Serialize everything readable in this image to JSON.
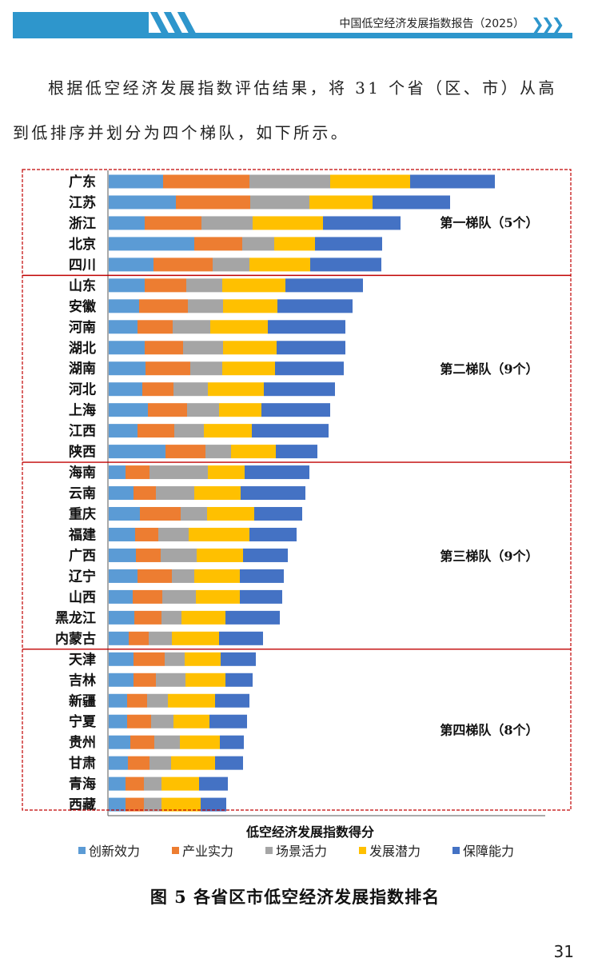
{
  "header": {
    "title": "中国低空经济发展指数报告（2025）"
  },
  "body": {
    "line1": "根据低空经济发展指数评估结果，将 31 个省（区、市）从高",
    "line2": "到低排序并划分为四个梯队，如下所示。"
  },
  "chart_data": {
    "type": "bar",
    "orientation": "horizontal",
    "stacked": true,
    "xlabel": "低空经济发展指数得分",
    "categories": [
      "广东",
      "江苏",
      "浙江",
      "北京",
      "四川",
      "山东",
      "安徽",
      "河南",
      "湖北",
      "湖南",
      "河北",
      "上海",
      "江西",
      "陕西",
      "海南",
      "云南",
      "重庆",
      "福建",
      "广西",
      "辽宁",
      "山西",
      "黑龙江",
      "内蒙古",
      "天津",
      "吉林",
      "新疆",
      "宁夏",
      "贵州",
      "甘肃",
      "青海",
      "西藏"
    ],
    "series": [
      {
        "name": "创新效力",
        "color": "#5B9BD5",
        "values": [
          13.6,
          16.8,
          9,
          21.4,
          11.2,
          9,
          7.6,
          7.2,
          9,
          9.2,
          8.4,
          9.8,
          7.2,
          14.2,
          4.2,
          6.2,
          7.8,
          6.6,
          6.8,
          7.2,
          6,
          6.4,
          5,
          6.2,
          6.2,
          4.6,
          4.6,
          5.4,
          4.8,
          4.2,
          4.2
        ]
      },
      {
        "name": "产业实力",
        "color": "#ED7D31",
        "values": [
          21.6,
          18.6,
          14.2,
          12,
          14.8,
          10.4,
          12.2,
          8.8,
          9.6,
          11.2,
          7.8,
          9.8,
          9.2,
          10,
          6,
          5.6,
          10.2,
          5.8,
          6.2,
          8.6,
          7.4,
          6.8,
          5,
          7.8,
          5.6,
          5,
          6,
          6,
          5.4,
          4.6,
          4.6
        ]
      },
      {
        "name": "场景活力",
        "color": "#A5A5A5",
        "values": [
          20.2,
          14.8,
          12.8,
          8,
          9.2,
          9,
          8.8,
          9.4,
          10,
          8,
          8.6,
          8,
          7.4,
          6.4,
          14.6,
          9.6,
          6.6,
          7.6,
          9,
          5.6,
          8.4,
          5,
          5.8,
          5,
          7.4,
          5.2,
          5.6,
          6.4,
          5.4,
          4.4,
          4.4
        ]
      },
      {
        "name": "发展潜力",
        "color": "#FFC000",
        "values": [
          20,
          15.8,
          17.6,
          10.2,
          15.2,
          15.8,
          13.6,
          14.4,
          13.4,
          13.2,
          14,
          10.6,
          12,
          11.2,
          9.2,
          11.6,
          11.8,
          15.2,
          11.6,
          11.4,
          11,
          11,
          11.8,
          9,
          10,
          11.8,
          9,
          10,
          11,
          9.4,
          9.8
        ]
      },
      {
        "name": "保障能力",
        "color": "#4472C4",
        "values": [
          21.2,
          19.4,
          19.4,
          16.8,
          17.8,
          19.4,
          18.8,
          19.4,
          17.2,
          17.2,
          17.8,
          17.2,
          19.2,
          10.4,
          16.2,
          16.2,
          12,
          11.8,
          11.2,
          11,
          10.6,
          13.6,
          11,
          8.8,
          6.8,
          8.6,
          9.4,
          6,
          7,
          7.2,
          6.4
        ]
      }
    ],
    "tiers": [
      {
        "label": "第一梯队（5个）",
        "count": 5
      },
      {
        "label": "第二梯队（9个）",
        "count": 9
      },
      {
        "label": "第三梯队（9个）",
        "count": 9
      },
      {
        "label": "第四梯队（8个）",
        "count": 8
      }
    ],
    "tier_border_color": "#C00000",
    "legend": "bottom"
  },
  "caption": "图 5 各省区市低空经济发展指数排名",
  "page_number": "31"
}
